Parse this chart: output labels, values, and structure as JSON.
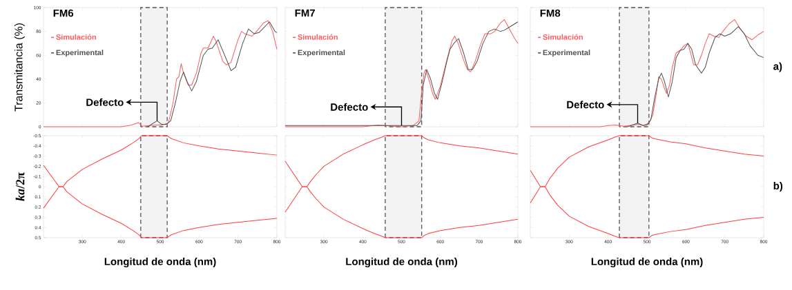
{
  "chart_data": [
    {
      "type": "line",
      "title": "FM6",
      "ylabel": "Transmitancia (%)",
      "xlim": [
        200,
        800
      ],
      "ylim": [
        0,
        100
      ],
      "xticks": [
        300,
        400,
        500,
        600,
        700,
        800
      ],
      "yticks": [
        0,
        20,
        40,
        60,
        80,
        100
      ],
      "tick_labels": "y",
      "legend": "top left",
      "series": [
        {
          "name": "Simulación",
          "color": "#ff5a5a",
          "x": [
            200,
            400,
            426,
            444,
            453,
            474,
            492,
            504,
            521,
            533,
            542,
            548,
            554,
            560,
            572,
            581,
            593,
            605,
            611,
            623,
            637,
            643,
            661,
            670,
            682,
            700,
            709,
            718,
            736,
            748,
            765,
            777,
            789,
            800
          ],
          "values": [
            0,
            0,
            1.5,
            3.5,
            0.5,
            1,
            1.5,
            1.5,
            3,
            20,
            40,
            42,
            53,
            45,
            35,
            35,
            45,
            62,
            66,
            66,
            76,
            72,
            55,
            52,
            54,
            73,
            80,
            78,
            76,
            80,
            87,
            89,
            80,
            65
          ]
        },
        {
          "name": "Experimental",
          "color": "#505050",
          "x": [
            468,
            492,
            504,
            515,
            527,
            539,
            551,
            560,
            569,
            581,
            593,
            611,
            623,
            634,
            649,
            658,
            676,
            682,
            694,
            712,
            727,
            742,
            754,
            781,
            795,
            800
          ],
          "values": [
            0,
            5,
            2,
            2,
            5,
            20,
            38,
            46,
            38,
            30,
            38,
            60,
            65,
            66,
            73,
            66,
            52,
            47,
            50,
            70,
            82,
            78,
            79,
            88,
            80,
            79
          ]
        }
      ],
      "bands": [
        {
          "axis": "x",
          "from": 450,
          "to": 518,
          "color": "#555555"
        }
      ],
      "annotations": [
        {
          "text": "Defecto",
          "x": 492,
          "y": 5
        }
      ]
    },
    {
      "type": "line",
      "title": "FM7",
      "xlim": [
        200,
        800
      ],
      "ylim": [
        0,
        100
      ],
      "xticks": [
        300,
        400,
        500,
        600,
        700,
        800
      ],
      "yticks": [
        0,
        20,
        40,
        60,
        80,
        100
      ],
      "tick_labels": false,
      "legend": "top left",
      "series": [
        {
          "name": "Simulación",
          "color": "#ff5a5a",
          "x": [
            200,
            400,
            440,
            480,
            500,
            530,
            545,
            552,
            558,
            562,
            572,
            580,
            587,
            600,
            612,
            620,
            630,
            637,
            646,
            660,
            670,
            678,
            690,
            705,
            715,
            730,
            740,
            755,
            765,
            775,
            790,
            800
          ],
          "values": [
            0,
            0,
            1.5,
            0.5,
            0,
            1,
            5,
            30,
            45,
            48,
            38,
            28,
            23,
            34,
            50,
            60,
            72,
            76,
            70,
            56,
            48,
            46,
            55,
            70,
            78,
            78,
            80,
            87,
            90,
            84,
            75,
            70
          ]
        },
        {
          "name": "Experimental",
          "color": "#505050",
          "x": [
            200,
            400,
            500,
            540,
            550,
            556,
            565,
            575,
            585,
            593,
            605,
            617,
            625,
            635,
            647,
            660,
            672,
            683,
            695,
            710,
            725,
            740,
            755,
            765,
            790,
            800
          ],
          "values": [
            1,
            1,
            1,
            1,
            5,
            35,
            48,
            40,
            28,
            23,
            38,
            55,
            65,
            70,
            74,
            62,
            48,
            48,
            55,
            70,
            80,
            82,
            80,
            81,
            86,
            88
          ]
        }
      ],
      "bands": [
        {
          "axis": "x",
          "from": 458,
          "to": 552,
          "color": "#555555"
        }
      ],
      "annotations": [
        {
          "text": "Defecto",
          "x": 500,
          "y": 1
        }
      ]
    },
    {
      "type": "line",
      "title": "FM8",
      "xlim": [
        200,
        800
      ],
      "ylim": [
        0,
        100
      ],
      "xticks": [
        300,
        400,
        500,
        600,
        700,
        800
      ],
      "yticks": [
        0,
        20,
        40,
        60,
        80,
        100
      ],
      "tick_labels": false,
      "legend": "top left",
      "series": [
        {
          "name": "Simulación",
          "color": "#ff5a5a",
          "x": [
            200,
            380,
            400,
            420,
            440,
            480,
            490,
            505,
            515,
            525,
            530,
            537,
            545,
            550,
            558,
            565,
            575,
            585,
            595,
            605,
            612,
            620,
            630,
            640,
            650,
            660,
            672,
            685,
            695,
            710,
            725,
            740,
            755,
            770,
            785,
            800
          ],
          "values": [
            0,
            0,
            1,
            1.5,
            0.5,
            2,
            1,
            3,
            10,
            30,
            42,
            40,
            32,
            28,
            35,
            50,
            62,
            64,
            68,
            70,
            62,
            52,
            52,
            60,
            70,
            78,
            76,
            75,
            80,
            86,
            90,
            82,
            76,
            73,
            77,
            80
          ]
        },
        {
          "name": "Experimental",
          "color": "#505050",
          "x": [
            450,
            476,
            490,
            500,
            510,
            520,
            530,
            537,
            545,
            555,
            565,
            575,
            585,
            595,
            605,
            615,
            625,
            640,
            650,
            660,
            675,
            687,
            700,
            715,
            735,
            750,
            765,
            785,
            800
          ],
          "values": [
            0,
            3,
            1,
            1.5,
            6,
            25,
            40,
            45,
            38,
            25,
            38,
            58,
            64,
            65,
            70,
            65,
            52,
            45,
            50,
            62,
            75,
            78,
            76,
            78,
            84,
            78,
            68,
            60,
            58
          ]
        }
      ],
      "bands": [
        {
          "axis": "x",
          "from": 429,
          "to": 505,
          "color": "#555555"
        }
      ],
      "annotations": [
        {
          "text": "Defecto",
          "x": 476,
          "y": 3
        },
        "a)"
      ]
    },
    {
      "type": "line",
      "xlabel": "Longitud de onda (nm)",
      "ylabel": "*ka*/2π",
      "xlim": [
        200,
        800
      ],
      "ylim": [
        0.5,
        -0.5
      ],
      "xticks": [
        300,
        400,
        500,
        600,
        700,
        800
      ],
      "yticks": [
        -0.5,
        -0.4,
        -0.3,
        -0.2,
        -0.1,
        0,
        0.1,
        0.2,
        0.3,
        0.4,
        0.5
      ],
      "series": [
        {
          "color": "#ff3c3c",
          "x": [
            200,
            240,
            250,
            260,
            280,
            300,
            350,
            400,
            430,
            445,
            452,
            518,
            525,
            530,
            560,
            600,
            650,
            700,
            750,
            800
          ],
          "values": [
            -0.21,
            0,
            0,
            -0.05,
            -0.11,
            -0.17,
            -0.27,
            -0.36,
            -0.43,
            -0.47,
            -0.5,
            -0.5,
            -0.48,
            -0.47,
            -0.43,
            -0.4,
            -0.37,
            -0.35,
            -0.33,
            -0.31
          ]
        },
        {
          "color": "#ff3c3c",
          "x": [
            200,
            240,
            250,
            260,
            280,
            300,
            350,
            400,
            430,
            445,
            452,
            518,
            525,
            530,
            560,
            600,
            650,
            700,
            750,
            800
          ],
          "values": [
            0.21,
            0,
            0,
            0.05,
            0.11,
            0.17,
            0.27,
            0.36,
            0.43,
            0.47,
            0.5,
            0.5,
            0.48,
            0.47,
            0.43,
            0.4,
            0.37,
            0.35,
            0.33,
            0.31
          ]
        }
      ],
      "bands": [
        {
          "axis": "x",
          "from": 450,
          "to": 518,
          "color": "#555555"
        }
      ]
    },
    {
      "type": "line",
      "xlabel": "Longitud de onda (nm)",
      "xlim": [
        200,
        800
      ],
      "ylim": [
        0.5,
        -0.5
      ],
      "xticks": [
        300,
        400,
        500,
        600,
        700,
        800
      ],
      "yticks": [
        -0.5,
        -0.4,
        -0.3,
        -0.2,
        -0.1,
        0,
        0.1,
        0.2,
        0.3,
        0.4,
        0.5
      ],
      "tick_labels": "x",
      "series": [
        {
          "color": "#ff3c3c",
          "x": [
            200,
            244,
            256,
            265,
            280,
            300,
            350,
            400,
            430,
            445,
            458,
            552,
            558,
            569,
            600,
            650,
            700,
            750,
            800
          ],
          "values": [
            -0.25,
            0,
            0,
            -0.05,
            -0.12,
            -0.2,
            -0.32,
            -0.41,
            -0.46,
            -0.48,
            -0.5,
            -0.5,
            -0.48,
            -0.46,
            -0.43,
            -0.4,
            -0.38,
            -0.35,
            -0.32
          ]
        },
        {
          "color": "#ff3c3c",
          "x": [
            200,
            244,
            256,
            265,
            280,
            300,
            350,
            400,
            430,
            445,
            458,
            552,
            558,
            569,
            600,
            650,
            700,
            750,
            800
          ],
          "values": [
            0.25,
            0,
            0,
            0.05,
            0.12,
            0.2,
            0.32,
            0.41,
            0.46,
            0.48,
            0.5,
            0.5,
            0.48,
            0.46,
            0.43,
            0.4,
            0.38,
            0.35,
            0.32
          ]
        }
      ],
      "bands": [
        {
          "axis": "x",
          "from": 458,
          "to": 552,
          "color": "#555555"
        }
      ]
    },
    {
      "type": "line",
      "xlabel": "Longitud de onda (nm)",
      "xlim": [
        200,
        800
      ],
      "ylim": [
        0.5,
        -0.5
      ],
      "xticks": [
        300,
        400,
        500,
        600,
        700,
        800
      ],
      "yticks": [
        -0.5,
        -0.4,
        -0.3,
        -0.2,
        -0.1,
        0,
        0.1,
        0.2,
        0.3,
        0.4,
        0.5
      ],
      "tick_labels": "x",
      "series": [
        {
          "color": "#ff3c3c",
          "x": [
            200,
            226,
            238,
            250,
            270,
            300,
            350,
            400,
            420,
            429,
            505,
            512,
            520,
            560,
            600,
            650,
            700,
            750,
            800
          ],
          "values": [
            -0.16,
            0,
            0,
            -0.08,
            -0.18,
            -0.29,
            -0.39,
            -0.46,
            -0.49,
            -0.5,
            -0.5,
            -0.48,
            -0.47,
            -0.44,
            -0.42,
            -0.38,
            -0.35,
            -0.32,
            -0.3
          ]
        },
        {
          "color": "#ff3c3c",
          "x": [
            200,
            226,
            238,
            250,
            270,
            300,
            350,
            400,
            420,
            429,
            505,
            512,
            520,
            560,
            600,
            650,
            700,
            750,
            800
          ],
          "values": [
            0.16,
            0,
            0,
            0.08,
            0.18,
            0.29,
            0.39,
            0.46,
            0.49,
            0.5,
            0.5,
            0.48,
            0.47,
            0.44,
            0.42,
            0.38,
            0.35,
            0.32,
            0.3
          ]
        }
      ],
      "bands": [
        {
          "axis": "x",
          "from": 429,
          "to": 505,
          "color": "#555555"
        }
      ],
      "annotations": [
        "b)"
      ]
    }
  ]
}
